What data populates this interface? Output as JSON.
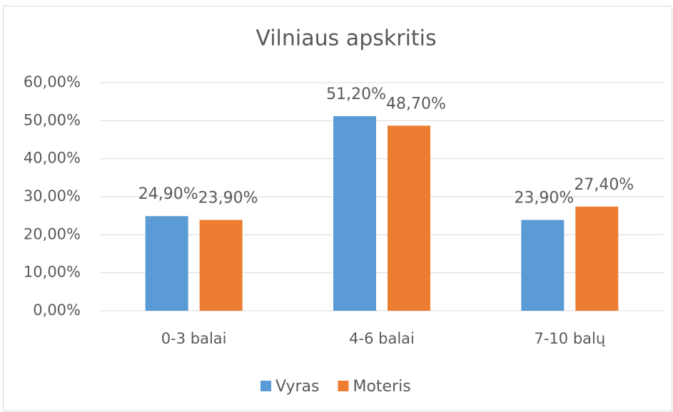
{
  "chart_data": {
    "type": "bar",
    "title": "Vilniaus apskritis",
    "categories": [
      "0-3 balai",
      "4-6 balai",
      "7-10 balų"
    ],
    "series": [
      {
        "name": "Vyras",
        "color": "#5b9bd5",
        "values": [
          24.9,
          51.2,
          23.9
        ],
        "value_labels": [
          "24,90%",
          "51,20%",
          "23,90%"
        ]
      },
      {
        "name": "Moteris",
        "color": "#ed7d31",
        "values": [
          23.9,
          48.7,
          27.4
        ],
        "value_labels": [
          "23,90%",
          "48,70%",
          "27,40%"
        ]
      }
    ],
    "ylim": [
      0,
      60
    ],
    "yticks": [
      {
        "value": 0,
        "label": "0,00%"
      },
      {
        "value": 10,
        "label": "10,00%"
      },
      {
        "value": 20,
        "label": "20,00%"
      },
      {
        "value": 30,
        "label": "30,00%"
      },
      {
        "value": 40,
        "label": "40,00%"
      },
      {
        "value": 50,
        "label": "50,00%"
      },
      {
        "value": 60,
        "label": "60,00%"
      }
    ],
    "grid": true,
    "legend": "bottom"
  }
}
